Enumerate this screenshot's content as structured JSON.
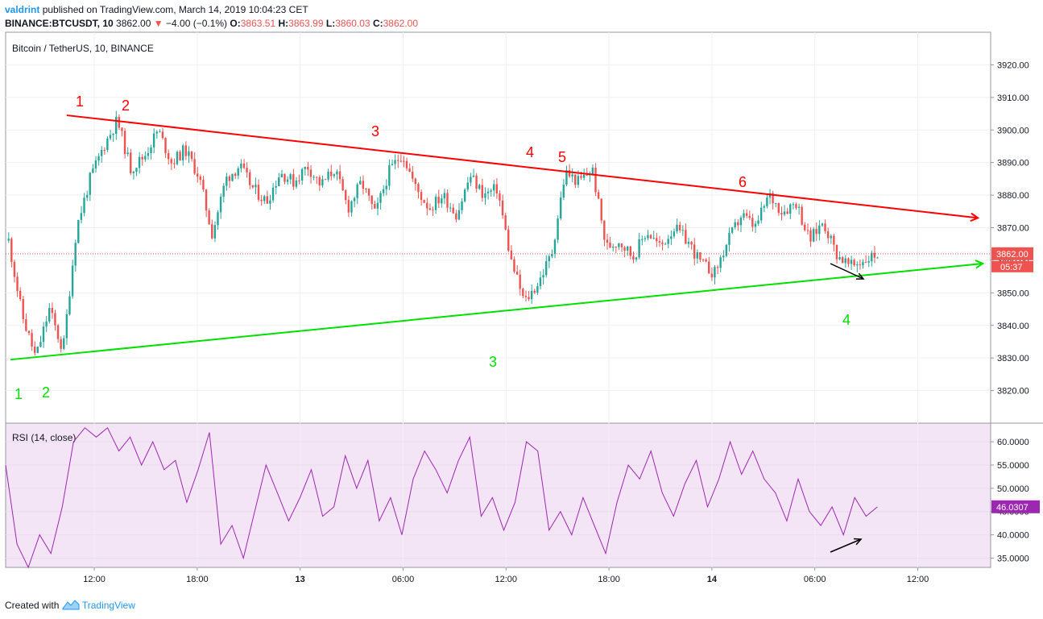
{
  "header": {
    "line1": {
      "user": "valdrint",
      "rest": "published on TradingView.com, March 14, 2019 10:04:23 CET"
    },
    "line2": {
      "symbol": "BINANCE:BTCUSDT, 10",
      "price": "3862.00",
      "change": "−4.00 (−0.1%)",
      "open_label": "O:",
      "open": "3863.51",
      "high_label": "H:",
      "high": "3863.99",
      "low_label": "L:",
      "low": "3860.03",
      "close_label": "C:",
      "close": "3862.00"
    }
  },
  "chart_data": [
    {
      "type": "candlestick",
      "title": "Bitcoin / TetherUS, 10, BINANCE",
      "ylim": [
        3810,
        3930
      ],
      "y_ticks": [
        "3920.00",
        "3910.00",
        "3900.00",
        "3890.00",
        "3880.00",
        "3870.00",
        "3860.00",
        "3850.00",
        "3840.00",
        "3830.00",
        "3820.00"
      ],
      "x_ticks": [
        "12:00",
        "18:00",
        "13",
        "06:00",
        "12:00",
        "18:00",
        "14",
        "06:00",
        "12:00"
      ],
      "colors": {
        "up": "#26a69a",
        "down": "#ef5350",
        "resistance": "#ff0000",
        "support": "#00e000",
        "price_label": "#ef5350"
      },
      "last_price": "3862.00",
      "countdown": "05:37",
      "price_path": [
        3866,
        3843,
        3830,
        3845,
        3832,
        3870,
        3885,
        3895,
        3903,
        3888,
        3892,
        3900,
        3890,
        3894,
        3886,
        3868,
        3885,
        3889,
        3882,
        3878,
        3887,
        3884,
        3889,
        3883,
        3888,
        3876,
        3884,
        3874,
        3887,
        3893,
        3882,
        3876,
        3880,
        3874,
        3886,
        3880,
        3882,
        3860,
        3847,
        3853,
        3862,
        3887,
        3884,
        3888,
        3864,
        3866,
        3861,
        3869,
        3864,
        3870,
        3866,
        3859,
        3856,
        3866,
        3874,
        3870,
        3880,
        3875,
        3878,
        3866,
        3872,
        3862,
        3858,
        3860,
        3862
      ],
      "resistance_line": {
        "start": [
          0.02,
          3904.5
        ],
        "end": [
          1.0,
          3873
        ]
      },
      "support_line": {
        "start": [
          0.0,
          3829.5
        ],
        "end": [
          1.0,
          3859
        ]
      },
      "annotations": {
        "resistance_touches": [
          "1",
          "2",
          "3",
          "4",
          "5",
          "6"
        ],
        "support_touches": [
          "1",
          "2",
          "3",
          "4"
        ]
      }
    },
    {
      "type": "line",
      "title": "RSI (14, close)",
      "ylim": [
        33,
        64
      ],
      "y_ticks": [
        "60.0000",
        "55.0000",
        "50.0000",
        "45.0000",
        "40.0000",
        "35.0000"
      ],
      "last_value": "46.0307",
      "colors": {
        "line": "#9c27b0",
        "background": "#f3e5f5",
        "value_label": "#9c27b0"
      },
      "values": [
        55,
        38,
        33,
        40,
        36,
        46,
        60,
        63,
        61,
        63,
        58,
        61,
        55,
        60,
        54,
        56,
        47,
        54,
        62,
        38,
        42,
        35,
        45,
        55,
        49,
        43,
        48,
        54,
        44,
        46,
        57,
        50,
        56,
        43,
        48,
        40,
        52,
        58,
        54,
        49,
        56,
        61,
        44,
        48,
        41,
        47,
        60,
        58,
        41,
        45,
        40,
        48,
        42,
        36,
        47,
        55,
        52,
        58,
        49,
        44,
        51,
        56,
        46,
        52,
        60,
        53,
        58,
        52,
        49,
        43,
        52,
        45,
        42,
        46,
        40,
        48,
        44,
        46
      ]
    }
  ],
  "footer": {
    "created_with": "Created with",
    "brand": "TradingView"
  }
}
